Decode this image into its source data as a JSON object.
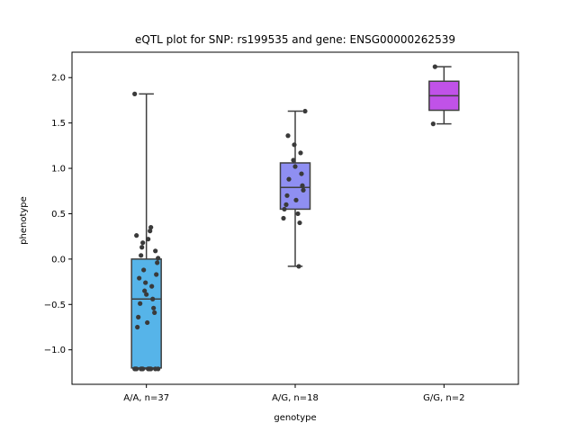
{
  "chart_data": {
    "type": "box",
    "title": "eQTL plot for SNP: rs199535 and gene: ENSG00000262539",
    "xlabel": "genotype",
    "ylabel": "phenotype",
    "ylim": [
      -1.38,
      2.28
    ],
    "yticks": [
      -1.0,
      -0.5,
      0.0,
      0.5,
      1.0,
      1.5,
      2.0
    ],
    "ytick_labels": [
      "−1.0",
      "−0.5",
      "0.0",
      "0.5",
      "1.0",
      "1.5",
      "2.0"
    ],
    "grid": false,
    "legend": "none",
    "categories": [
      "A/A, n=37",
      "A/G, n=18",
      "G/G, n=2"
    ],
    "colors": [
      "#56b4e9",
      "#8f8ff2",
      "#c052e8"
    ],
    "box_stats": [
      {
        "category": "A/A, n=37",
        "min": -1.21,
        "q1": -1.2,
        "median": -0.44,
        "q3": 0.0,
        "max": 1.82
      },
      {
        "category": "A/G, n=18",
        "min": -0.08,
        "q1": 0.55,
        "median": 0.79,
        "q3": 1.06,
        "max": 1.63
      },
      {
        "category": "G/G, n=2",
        "min": 1.49,
        "q1": 1.64,
        "median": 1.8,
        "q3": 1.96,
        "max": 2.12
      }
    ],
    "points": [
      {
        "category": "A/A, n=37",
        "values": [
          1.82,
          0.35,
          0.31,
          0.26,
          0.22,
          0.18,
          0.13,
          0.09,
          0.04,
          0.01,
          -0.04,
          -0.12,
          -0.17,
          -0.21,
          -0.26,
          -0.3,
          -0.35,
          -0.39,
          -0.44,
          -0.49,
          -0.54,
          -0.59,
          -0.64,
          -0.7,
          -0.75,
          -1.21,
          -1.21,
          -1.21,
          -1.21,
          -1.21,
          -1.21,
          -1.21,
          -1.21,
          -1.21,
          -1.21,
          -1.21,
          -1.21
        ]
      },
      {
        "category": "A/G, n=18",
        "values": [
          1.63,
          1.36,
          1.26,
          1.17,
          1.09,
          1.02,
          0.94,
          0.88,
          0.81,
          0.76,
          0.7,
          0.65,
          0.6,
          0.55,
          0.5,
          0.45,
          0.4,
          -0.08
        ]
      },
      {
        "category": "G/G, n=2",
        "values": [
          2.12,
          1.49
        ]
      }
    ]
  }
}
